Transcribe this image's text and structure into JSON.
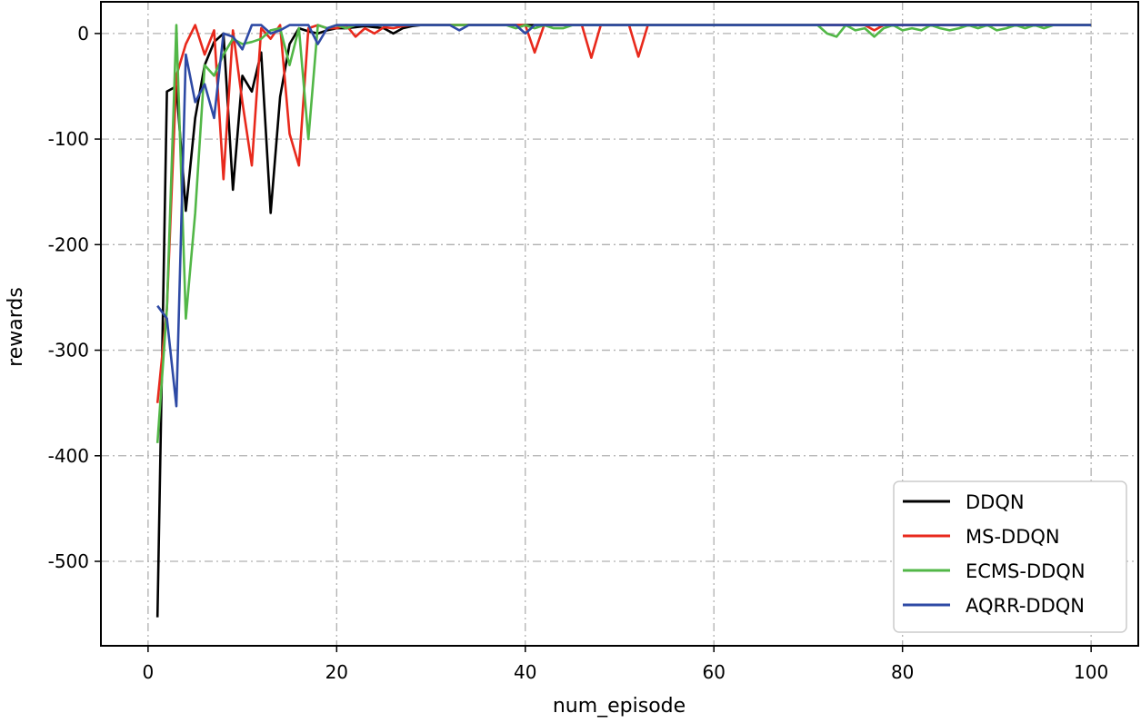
{
  "chart_data": {
    "type": "line",
    "title": "",
    "xlabel": "num_episode",
    "ylabel": "rewards",
    "xlim": [
      -5,
      105
    ],
    "ylim": [
      -580,
      30
    ],
    "xticks": [
      0,
      20,
      40,
      60,
      80,
      100
    ],
    "xtick_labels": [
      "0",
      "20",
      "40",
      "60",
      "80",
      "100"
    ],
    "yticks": [
      0,
      -100,
      -200,
      -300,
      -400,
      -500
    ],
    "ytick_labels": [
      "0",
      "-100",
      "-200",
      "-300",
      "-400",
      "-500"
    ],
    "grid": true,
    "legend_position": "bottom-right",
    "x": [
      1,
      2,
      3,
      4,
      5,
      6,
      7,
      8,
      9,
      10,
      11,
      12,
      13,
      14,
      15,
      16,
      17,
      18,
      19,
      20,
      21,
      22,
      23,
      24,
      25,
      26,
      27,
      28,
      29,
      30,
      31,
      32,
      33,
      34,
      35,
      36,
      37,
      38,
      39,
      40,
      41,
      42,
      43,
      44,
      45,
      46,
      47,
      48,
      49,
      50,
      51,
      52,
      53,
      54,
      55,
      56,
      57,
      58,
      59,
      60,
      61,
      62,
      63,
      64,
      65,
      66,
      67,
      68,
      69,
      70,
      71,
      72,
      73,
      74,
      75,
      76,
      77,
      78,
      79,
      80,
      81,
      82,
      83,
      84,
      85,
      86,
      87,
      88,
      89,
      90,
      91,
      92,
      93,
      94,
      95,
      96,
      97,
      98,
      99,
      100
    ],
    "series": [
      {
        "name": "DDQN",
        "color": "#000000",
        "values": [
          -553,
          -55,
          -50,
          -168,
          -80,
          -30,
          -8,
          0,
          -148,
          -40,
          -55,
          -18,
          -170,
          -60,
          -10,
          5,
          2,
          0,
          3,
          5,
          5,
          6,
          7,
          6,
          5,
          0,
          5,
          7,
          8,
          8,
          8,
          8,
          8,
          8,
          8,
          8,
          8,
          8,
          8,
          8,
          8,
          8,
          8,
          8,
          8,
          8,
          8,
          8,
          8,
          8,
          8,
          8,
          8,
          8,
          8,
          8,
          8,
          8,
          8,
          8,
          8,
          8,
          8,
          8,
          8,
          8,
          8,
          8,
          8,
          8,
          8,
          8,
          8,
          8,
          8,
          8,
          8,
          8,
          8,
          8,
          8,
          8,
          8,
          8,
          8,
          8,
          8,
          8,
          8,
          8,
          8,
          8,
          8,
          8,
          8,
          8,
          8,
          8,
          8,
          8
        ]
      },
      {
        "name": "MS-DDQN",
        "color": "#e8291c",
        "values": [
          -350,
          -260,
          -40,
          -10,
          8,
          -20,
          3,
          -138,
          3,
          -65,
          -125,
          5,
          -5,
          8,
          -95,
          -125,
          5,
          8,
          5,
          5,
          8,
          -3,
          5,
          0,
          6,
          5,
          7,
          8,
          8,
          8,
          8,
          8,
          8,
          8,
          8,
          8,
          8,
          8,
          8,
          8,
          -18,
          8,
          8,
          8,
          8,
          8,
          -23,
          8,
          8,
          8,
          8,
          -22,
          8,
          8,
          8,
          8,
          8,
          8,
          8,
          8,
          8,
          8,
          8,
          8,
          8,
          8,
          8,
          8,
          8,
          8,
          8,
          8,
          8,
          8,
          8,
          8,
          3,
          8,
          8,
          8,
          8,
          8,
          8,
          8,
          8,
          8,
          8,
          8,
          8,
          8,
          8,
          8,
          8,
          8,
          8,
          8,
          8,
          8,
          8,
          8
        ]
      },
      {
        "name": "ECMS-DDQN",
        "color": "#52b747",
        "values": [
          -388,
          -260,
          8,
          -270,
          -170,
          -30,
          -40,
          -20,
          -5,
          -10,
          -8,
          -5,
          3,
          5,
          -30,
          5,
          -100,
          8,
          5,
          8,
          5,
          8,
          8,
          8,
          8,
          8,
          8,
          8,
          8,
          8,
          8,
          8,
          8,
          8,
          8,
          8,
          8,
          8,
          5,
          8,
          5,
          8,
          5,
          5,
          8,
          8,
          8,
          8,
          8,
          8,
          8,
          8,
          8,
          8,
          8,
          8,
          8,
          8,
          8,
          8,
          8,
          8,
          8,
          8,
          8,
          8,
          8,
          8,
          8,
          8,
          8,
          0,
          -3,
          8,
          3,
          5,
          -3,
          5,
          8,
          3,
          5,
          3,
          8,
          5,
          3,
          5,
          8,
          5,
          8,
          3,
          5,
          8,
          5,
          8,
          5,
          8,
          8,
          8,
          8,
          8
        ]
      },
      {
        "name": "AQRR-DDQN",
        "color": "#2e4aa5",
        "values": [
          -258,
          -270,
          -353,
          -20,
          -65,
          -48,
          -80,
          0,
          -3,
          -15,
          8,
          8,
          0,
          3,
          8,
          8,
          8,
          -10,
          5,
          8,
          8,
          8,
          8,
          8,
          8,
          8,
          8,
          8,
          8,
          8,
          8,
          8,
          3,
          8,
          8,
          8,
          8,
          8,
          8,
          0,
          8,
          8,
          8,
          8,
          8,
          8,
          8,
          8,
          8,
          8,
          8,
          8,
          8,
          8,
          8,
          8,
          8,
          8,
          8,
          8,
          8,
          8,
          8,
          8,
          8,
          8,
          8,
          8,
          8,
          8,
          8,
          8,
          8,
          8,
          8,
          8,
          8,
          8,
          8,
          8,
          8,
          8,
          8,
          8,
          8,
          8,
          8,
          8,
          8,
          8,
          8,
          8,
          8,
          8,
          8,
          8,
          8,
          8,
          8,
          8
        ]
      }
    ]
  }
}
